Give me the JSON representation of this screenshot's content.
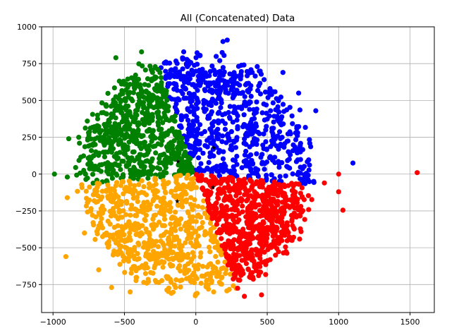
{
  "chart_data": {
    "type": "scatter",
    "title": "All (Concatenated) Data",
    "xlabel": "",
    "ylabel": "",
    "xlim": [
      -1080,
      1670
    ],
    "ylim": [
      -940,
      1000
    ],
    "xticks": [
      -1000,
      -500,
      0,
      500,
      1000,
      1500
    ],
    "yticks": [
      -750,
      -500,
      -250,
      0,
      250,
      500,
      750,
      1000
    ],
    "grid": true,
    "clusters": [
      {
        "color": "#0000ff",
        "wedge_deg": [
          -5,
          110
        ],
        "inner_r": 0,
        "outer_r": 800,
        "outliers": [
          [
            1100,
            75
          ],
          [
            840,
            430
          ],
          [
            720,
            550
          ],
          [
            610,
            690
          ],
          [
            190,
            900
          ],
          [
            220,
            910
          ],
          [
            430,
            730
          ]
        ],
        "centroid": [
          125,
          180
        ]
      },
      {
        "color": "#008000",
        "wedge_deg": [
          110,
          185
        ],
        "inner_r": 0,
        "outer_r": 800,
        "outliers": [
          [
            -990,
            0
          ],
          [
            -890,
            240
          ],
          [
            -900,
            -20
          ],
          [
            -560,
            790
          ],
          [
            -380,
            830
          ],
          [
            -760,
            360
          ],
          [
            -820,
            250
          ]
        ],
        "centroid": [
          -125,
          85
        ]
      },
      {
        "color": "#ffa500",
        "wedge_deg": [
          185,
          290
        ],
        "inner_r": 0,
        "outer_r": 800,
        "outliers": [
          [
            -900,
            -160
          ],
          [
            -910,
            -560
          ],
          [
            -590,
            -770
          ],
          [
            -460,
            -800
          ],
          [
            -780,
            -400
          ],
          [
            -680,
            -650
          ]
        ],
        "centroid": [
          -130,
          -185
        ]
      },
      {
        "color": "#ff0000",
        "wedge_deg": [
          290,
          355
        ],
        "inner_r": 0,
        "outer_r": 800,
        "outliers": [
          [
            1550,
            10
          ],
          [
            1000,
            0
          ],
          [
            1000,
            -120
          ],
          [
            1030,
            -245
          ],
          [
            900,
            -60
          ],
          [
            460,
            -820
          ],
          [
            340,
            -830
          ]
        ],
        "centroid": [
          120,
          -90
        ]
      }
    ],
    "centroid_marker": "star",
    "centroid_color": "#000000"
  }
}
